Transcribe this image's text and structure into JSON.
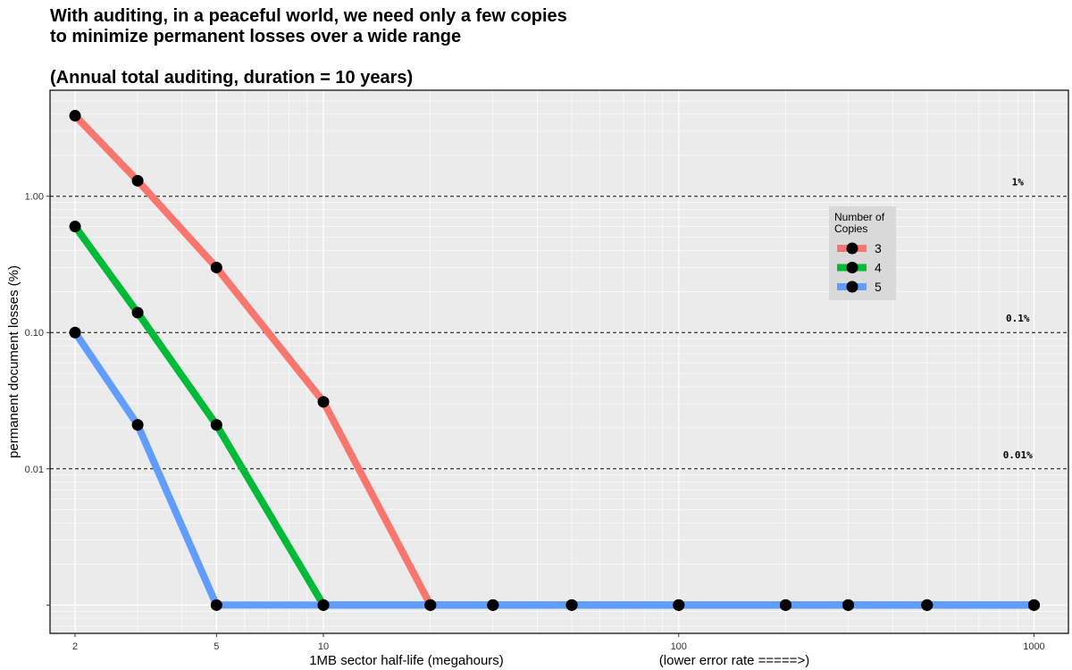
{
  "title_line1": "With auditing, in a peaceful world, we need only a few copies",
  "title_line2": "to minimize permanent losses over a wide range",
  "subtitle": "(Annual total auditing, duration = 10 years)",
  "chart_data": {
    "type": "line",
    "xlabel": "1MB sector half-life (megahours)",
    "xlabel_extra": "(lower error rate =====>)",
    "ylabel": "permanent document losses (%)",
    "x_scale": "log",
    "y_scale": "log",
    "xlim": [
      1.7,
      1250
    ],
    "ylim": [
      0.00062,
      6
    ],
    "x_ticks": [
      2,
      5,
      10,
      100,
      1000
    ],
    "x_tick_labels": [
      "2",
      "5",
      "10",
      "100",
      "1000"
    ],
    "y_ticks": [
      0.001,
      0.01,
      0.1,
      1
    ],
    "y_tick_labels": [
      "",
      "0.01",
      "0.10",
      "1.00"
    ],
    "grid": true,
    "background": "#EBEBEB",
    "reference_lines": [
      {
        "y": 1,
        "label": "1%"
      },
      {
        "y": 0.1,
        "label": "0.1%"
      },
      {
        "y": 0.01,
        "label": "0.01%"
      }
    ],
    "legend": {
      "title": "Number of\nCopies",
      "placement": "right"
    },
    "series": [
      {
        "name": "3",
        "color": "#F8766D",
        "x": [
          2,
          3,
          5,
          10,
          20,
          30,
          50,
          100,
          200,
          300,
          500,
          1000
        ],
        "y": [
          3.9,
          1.3,
          0.3,
          0.031,
          0.001,
          0.001,
          0.001,
          0.001,
          0.001,
          0.001,
          0.001,
          0.001
        ]
      },
      {
        "name": "4",
        "color": "#00BA38",
        "x": [
          2,
          3,
          5,
          10,
          20,
          30,
          50,
          100,
          200,
          300,
          500,
          1000
        ],
        "y": [
          0.6,
          0.14,
          0.021,
          0.001,
          0.001,
          0.001,
          0.001,
          0.001,
          0.001,
          0.001,
          0.001,
          0.001
        ]
      },
      {
        "name": "5",
        "color": "#619CFF",
        "x": [
          2,
          3,
          5,
          10,
          20,
          30,
          50,
          100,
          200,
          300,
          500,
          1000
        ],
        "y": [
          0.1,
          0.021,
          0.001,
          0.001,
          0.001,
          0.001,
          0.001,
          0.001,
          0.001,
          0.001,
          0.001,
          0.001
        ]
      }
    ]
  }
}
